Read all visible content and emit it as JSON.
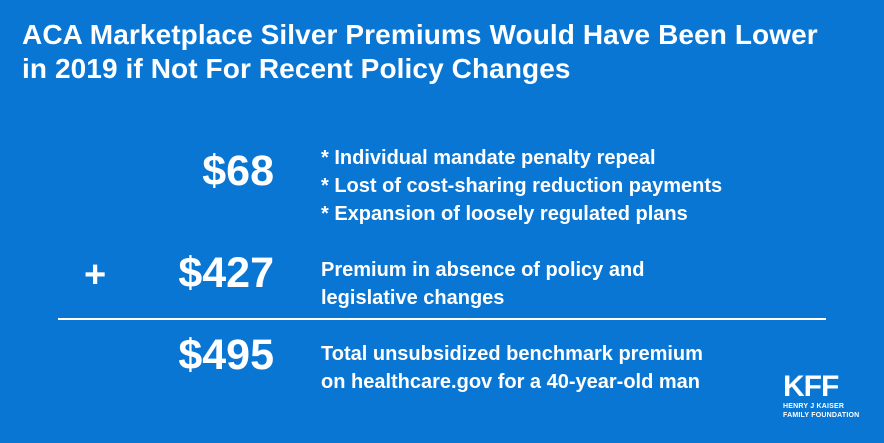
{
  "title": {
    "line1": "ACA Marketplace Silver Premiums Would Have Been Lower",
    "line2": "in 2019 if Not For Recent Policy Changes"
  },
  "rows": [
    {
      "amount": "$68",
      "description": [
        "* Individual mandate penalty repeal",
        "* Lost of cost-sharing reduction payments",
        "* Expansion of loosely regulated plans"
      ]
    },
    {
      "prefix": "+",
      "amount": "$427",
      "description": [
        "Premium in absence of policy and",
        "legislative changes"
      ]
    },
    {
      "amount": "$495",
      "description": [
        "Total unsubsidized benchmark premium",
        "on healthcare.gov for a 40-year-old man"
      ]
    }
  ],
  "logo": {
    "mark": "KFF",
    "line1": "HENRY J KAISER",
    "line2": "FAMILY FOUNDATION"
  },
  "colors": {
    "background": "#0a76d4",
    "text": "#ffffff"
  }
}
